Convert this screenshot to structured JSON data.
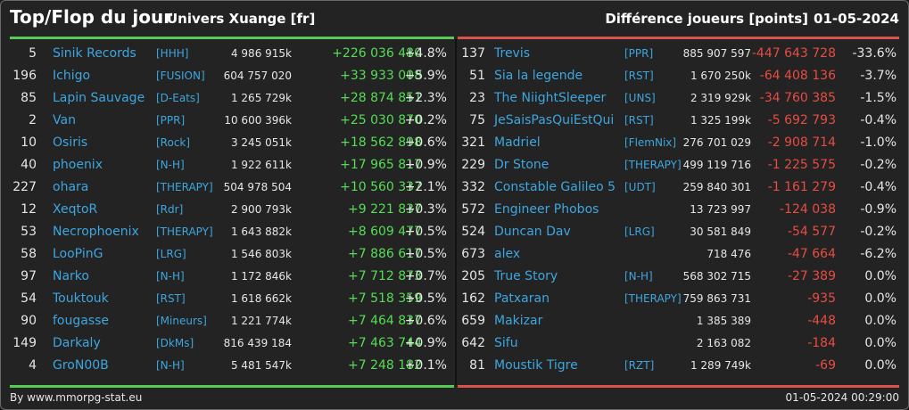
{
  "header": {
    "title": "Top/Flop du jour",
    "server": "Univers Xuange [fr]",
    "metric": "Différence joueurs [points]",
    "date": "01-05-2024"
  },
  "colors": {
    "background": "#232323",
    "positive": "#55dd55",
    "negative": "#e84c43",
    "link": "#3ea6df",
    "top_line": "#55cc55",
    "flop_line": "#d9534a"
  },
  "top": [
    {
      "rank": "5",
      "name": "Sinik Records",
      "guild": "[HHH]",
      "points": "4 986 915k",
      "diff": "+226 036 480",
      "pct": "+4.8%"
    },
    {
      "rank": "196",
      "name": "Ichigo",
      "guild": "[FUSION]",
      "points": "604 757 020",
      "diff": "+33 933 008",
      "pct": "+5.9%"
    },
    {
      "rank": "85",
      "name": "Lapin Sauvage",
      "guild": "[D-Eats]",
      "points": "1 265 729k",
      "diff": "+28 874 851",
      "pct": "+2.3%"
    },
    {
      "rank": "2",
      "name": "Van",
      "guild": "[PPR]",
      "points": "10 600 396k",
      "diff": "+25 030 870",
      "pct": "+0.2%"
    },
    {
      "rank": "10",
      "name": "Osiris",
      "guild": "[Rock]",
      "points": "3 245 051k",
      "diff": "+18 562 898",
      "pct": "+0.6%"
    },
    {
      "rank": "40",
      "name": "phoenix",
      "guild": "[N-H]",
      "points": "1 922 611k",
      "diff": "+17 965 817",
      "pct": "+0.9%"
    },
    {
      "rank": "227",
      "name": "ohara",
      "guild": "[THERAPY]",
      "points": "504 978 504",
      "diff": "+10 560 337",
      "pct": "+2.1%"
    },
    {
      "rank": "12",
      "name": "XeqtoR",
      "guild": "[Rdr]",
      "points": "2 900 793k",
      "diff": "+9 221 837",
      "pct": "+0.3%"
    },
    {
      "rank": "53",
      "name": "Necrophoenix",
      "guild": "[THERAPY]",
      "points": "1 643 882k",
      "diff": "+8 609 477",
      "pct": "+0.5%"
    },
    {
      "rank": "58",
      "name": "LooPinG",
      "guild": "[LRG]",
      "points": "1 546 803k",
      "diff": "+7 886 617",
      "pct": "+0.5%"
    },
    {
      "rank": "97",
      "name": "Narko",
      "guild": "[N-H]",
      "points": "1 172 846k",
      "diff": "+7 712 873",
      "pct": "+0.7%"
    },
    {
      "rank": "54",
      "name": "Touktouk",
      "guild": "[RST]",
      "points": "1 618 662k",
      "diff": "+7 518 359",
      "pct": "+0.5%"
    },
    {
      "rank": "90",
      "name": "fougasse",
      "guild": "[Mineurs]",
      "points": "1 221 774k",
      "diff": "+7 464 837",
      "pct": "+0.6%"
    },
    {
      "rank": "149",
      "name": "Darkaly",
      "guild": "[DkMs]",
      "points": "816 439 184",
      "diff": "+7 463 744",
      "pct": "+0.9%"
    },
    {
      "rank": "4",
      "name": "GroN00B",
      "guild": "[N-H]",
      "points": "5 481 547k",
      "diff": "+7 248 182",
      "pct": "+0.1%"
    }
  ],
  "flop": [
    {
      "rank": "137",
      "name": "Trevis",
      "guild": "[PPR]",
      "points": "885 907 597",
      "diff": "-447 643 728",
      "pct": "-33.6%"
    },
    {
      "rank": "51",
      "name": "Sia la legende",
      "guild": "[RST]",
      "points": "1 670 250k",
      "diff": "-64 408 136",
      "pct": "-3.7%"
    },
    {
      "rank": "23",
      "name": "The NiightSleeper",
      "guild": "[UNS]",
      "points": "2 319 929k",
      "diff": "-34 760 385",
      "pct": "-1.5%"
    },
    {
      "rank": "75",
      "name": "JeSaisPasQuiEstQui",
      "guild": "[RST]",
      "points": "1 325 199k",
      "diff": "-5 692 793",
      "pct": "-0.4%"
    },
    {
      "rank": "321",
      "name": "Madriel",
      "guild": "[FlemNix]",
      "points": "276 701 029",
      "diff": "-2 908 714",
      "pct": "-1.0%"
    },
    {
      "rank": "229",
      "name": "Dr Stone",
      "guild": "[THERAPY]",
      "points": "499 119 716",
      "diff": "-1 225 575",
      "pct": "-0.2%"
    },
    {
      "rank": "332",
      "name": "Constable Galileo 5",
      "guild": "[UDT]",
      "points": "259 840 301",
      "diff": "-1 161 279",
      "pct": "-0.4%"
    },
    {
      "rank": "572",
      "name": "Engineer Phobos",
      "guild": "",
      "points": "13 723 997",
      "diff": "-124 038",
      "pct": "-0.9%"
    },
    {
      "rank": "524",
      "name": "Duncan Dav",
      "guild": "[LRG]",
      "points": "30 581 849",
      "diff": "-54 577",
      "pct": "-0.2%"
    },
    {
      "rank": "673",
      "name": "alex",
      "guild": "",
      "points": "718 476",
      "diff": "-47 664",
      "pct": "-6.2%"
    },
    {
      "rank": "205",
      "name": "True Story",
      "guild": "[N-H]",
      "points": "568 302 715",
      "diff": "-27 389",
      "pct": "0.0%"
    },
    {
      "rank": "162",
      "name": "Patxaran",
      "guild": "[THERAPY]",
      "points": "759 863 731",
      "diff": "-935",
      "pct": "0.0%"
    },
    {
      "rank": "659",
      "name": "Makizar",
      "guild": "",
      "points": "1 385 389",
      "diff": "-448",
      "pct": "0.0%"
    },
    {
      "rank": "642",
      "name": "Sifu",
      "guild": "",
      "points": "2 163 082",
      "diff": "-184",
      "pct": "0.0%"
    },
    {
      "rank": "81",
      "name": "Moustik Tigre",
      "guild": "[RZT]",
      "points": "1 289 749k",
      "diff": "-69",
      "pct": "0.0%"
    }
  ],
  "footer": {
    "credit": "By www.mmorpg-stat.eu",
    "timestamp": "01-05-2024 00:29:00"
  }
}
